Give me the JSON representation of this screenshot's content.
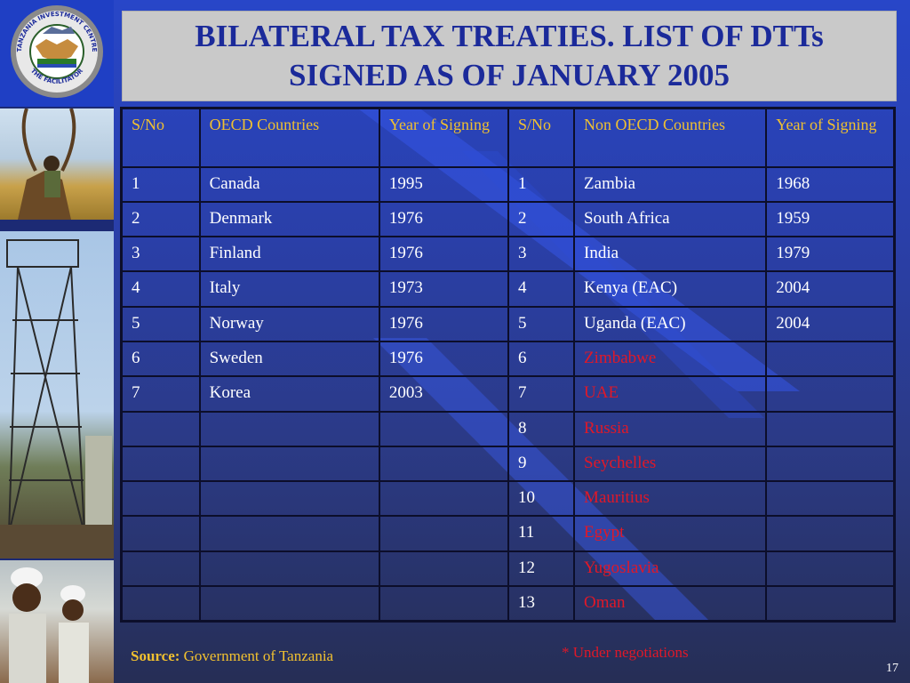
{
  "title": "BILATERAL TAX TREATIES. LIST OF DTTs SIGNED AS OF JANUARY 2005",
  "logo": {
    "top_text": "TANZANIA INVESTMENT CENTRE",
    "bottom_text": "THE FACILITATOR",
    "icon": "handshake-logo-icon"
  },
  "table": {
    "headers": [
      "S/No",
      "OECD Countries",
      "Year of Signing",
      "S/No",
      "Non OECD Countries",
      "Year of Signing"
    ],
    "rows": [
      {
        "oecd_no": "1",
        "oecd_country": "Canada",
        "oecd_year": "1995",
        "non_no": "1",
        "non_country": "Zambia",
        "non_year": "1968"
      },
      {
        "oecd_no": "2",
        "oecd_country": "Denmark",
        "oecd_year": "1976",
        "non_no": "2",
        "non_country": "South Africa",
        "non_year": "1959"
      },
      {
        "oecd_no": "3",
        "oecd_country": "Finland",
        "oecd_year": "1976",
        "non_no": "3",
        "non_country": "India",
        "non_year": "1979"
      },
      {
        "oecd_no": "4",
        "oecd_country": "Italy",
        "oecd_year": "1973",
        "non_no": "4",
        "non_country": "Kenya (EAC)",
        "non_year": "2004"
      },
      {
        "oecd_no": "5",
        "oecd_country": "Norway",
        "oecd_year": "1976",
        "non_no": "5",
        "non_country": "Uganda (EAC)",
        "non_year": "2004"
      },
      {
        "oecd_no": "6",
        "oecd_country": "Sweden",
        "oecd_year": "1976",
        "non_no": "6",
        "non_country": "Zimbabwe",
        "non_year": ""
      },
      {
        "oecd_no": "7",
        "oecd_country": "Korea",
        "oecd_year": "2003",
        "non_no": "7",
        "non_country": "UAE",
        "non_year": ""
      },
      {
        "oecd_no": "",
        "oecd_country": "",
        "oecd_year": "",
        "non_no": "8",
        "non_country": "Russia",
        "non_year": ""
      },
      {
        "oecd_no": "",
        "oecd_country": "",
        "oecd_year": "",
        "non_no": "9",
        "non_country": "Seychelles",
        "non_year": ""
      },
      {
        "oecd_no": "",
        "oecd_country": "",
        "oecd_year": "",
        "non_no": "10",
        "non_country": "Mauritius",
        "non_year": ""
      },
      {
        "oecd_no": "",
        "oecd_country": "",
        "oecd_year": "",
        "non_no": "11",
        "non_country": "Egypt",
        "non_year": ""
      },
      {
        "oecd_no": "",
        "oecd_country": "",
        "oecd_year": "",
        "non_no": "12",
        "non_country": "Yugoslavia",
        "non_year": ""
      },
      {
        "oecd_no": "",
        "oecd_country": "",
        "oecd_year": "",
        "non_no": "13",
        "non_country": "Oman",
        "non_year": ""
      }
    ],
    "under_negotiation_from_row": 6
  },
  "source": {
    "label": "Source:",
    "text": "Government of Tanzania"
  },
  "footnote": "* Under negotiations",
  "page_number": "17",
  "colors": {
    "title": "#1b2a9a",
    "header": "#f0c030",
    "negotiation": "#e01828",
    "cell_text": "#ffffff"
  }
}
